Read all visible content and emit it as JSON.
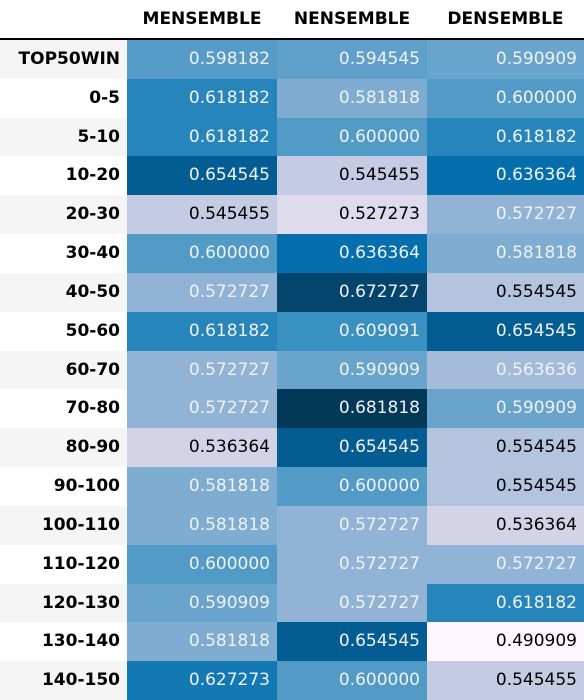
{
  "chart_data": {
    "type": "table",
    "columns": [
      "MENSEMBLE",
      "NENSEMBLE",
      "DENSEMBLE"
    ],
    "rows": [
      {
        "label": "TOP50WIN",
        "values": [
          "0.598182",
          "0.594545",
          "0.590909"
        ]
      },
      {
        "label": "0-5",
        "values": [
          "0.618182",
          "0.581818",
          "0.600000"
        ]
      },
      {
        "label": "5-10",
        "values": [
          "0.618182",
          "0.600000",
          "0.618182"
        ]
      },
      {
        "label": "10-20",
        "values": [
          "0.654545",
          "0.545455",
          "0.636364"
        ]
      },
      {
        "label": "20-30",
        "values": [
          "0.545455",
          "0.527273",
          "0.572727"
        ]
      },
      {
        "label": "30-40",
        "values": [
          "0.600000",
          "0.636364",
          "0.581818"
        ]
      },
      {
        "label": "40-50",
        "values": [
          "0.572727",
          "0.672727",
          "0.554545"
        ]
      },
      {
        "label": "50-60",
        "values": [
          "0.618182",
          "0.609091",
          "0.654545"
        ]
      },
      {
        "label": "60-70",
        "values": [
          "0.572727",
          "0.590909",
          "0.563636"
        ]
      },
      {
        "label": "70-80",
        "values": [
          "0.572727",
          "0.681818",
          "0.590909"
        ]
      },
      {
        "label": "80-90",
        "values": [
          "0.536364",
          "0.654545",
          "0.554545"
        ]
      },
      {
        "label": "90-100",
        "values": [
          "0.581818",
          "0.600000",
          "0.554545"
        ]
      },
      {
        "label": "100-110",
        "values": [
          "0.581818",
          "0.572727",
          "0.536364"
        ]
      },
      {
        "label": "110-120",
        "values": [
          "0.600000",
          "0.572727",
          "0.572727"
        ]
      },
      {
        "label": "120-130",
        "values": [
          "0.590909",
          "0.572727",
          "0.618182"
        ]
      },
      {
        "label": "130-140",
        "values": [
          "0.581818",
          "0.654545",
          "0.490909"
        ]
      },
      {
        "label": "140-150",
        "values": [
          "0.627273",
          "0.600000",
          "0.545455"
        ]
      }
    ],
    "colormap": "PuBu",
    "color_range": [
      0.490909,
      0.681818
    ],
    "row_stripe_colors": [
      "#f5f5f5",
      "#ffffff"
    ]
  }
}
